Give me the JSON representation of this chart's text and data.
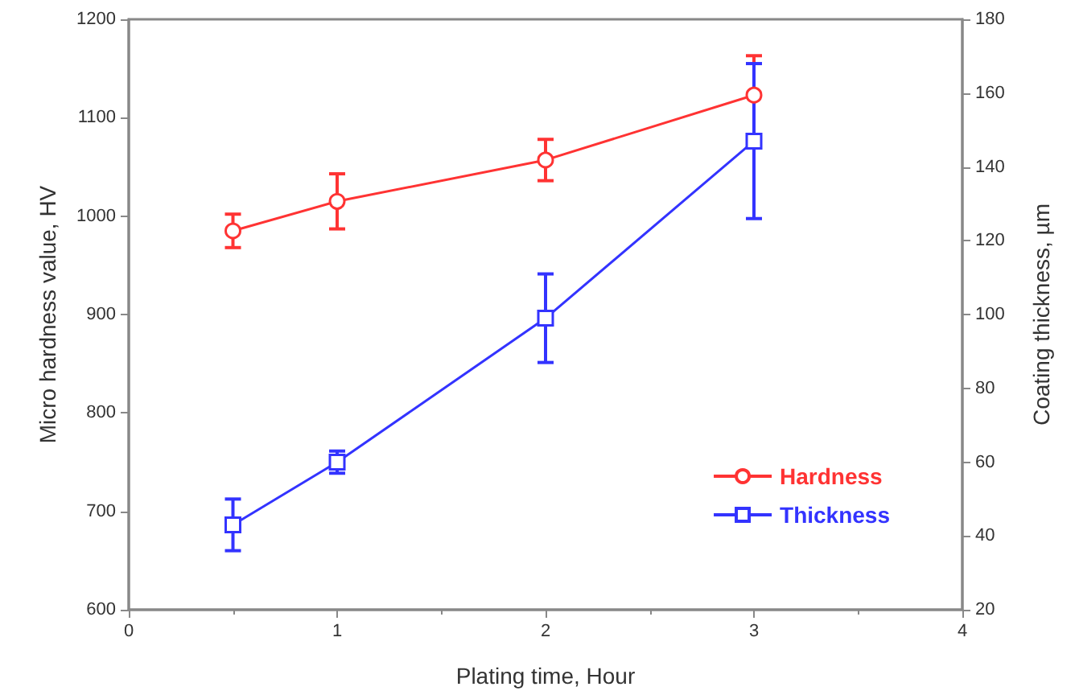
{
  "chart_data": {
    "type": "line",
    "xlabel": "Plating time, Hour",
    "ylabel": "Micro hardness value, HV",
    "y2label": "Coating thickness, µm",
    "xlim": [
      0,
      4
    ],
    "xticks": [
      0,
      1,
      2,
      3,
      4
    ],
    "ylim": [
      600,
      1200
    ],
    "yticks": [
      600,
      700,
      800,
      900,
      1000,
      1100,
      1200
    ],
    "y2lim": [
      20,
      180
    ],
    "y2ticks": [
      20,
      40,
      60,
      80,
      100,
      120,
      140,
      160,
      180
    ],
    "grid": false,
    "legend": "bottom right",
    "series": [
      {
        "name": "Hardness",
        "color": "#ff3333",
        "marker": "circle",
        "x": [
          0.5,
          1,
          2,
          3
        ],
        "values": [
          985,
          1015,
          1057,
          1123
        ],
        "errors": [
          17,
          28,
          21,
          40
        ]
      },
      {
        "name": "Thickness",
        "color": "#3333ff",
        "marker": "square",
        "axis": "y2",
        "x": [
          0.5,
          1,
          2,
          3
        ],
        "values": [
          43,
          60,
          99,
          147
        ],
        "errors": [
          7,
          3,
          12,
          21
        ]
      }
    ]
  }
}
